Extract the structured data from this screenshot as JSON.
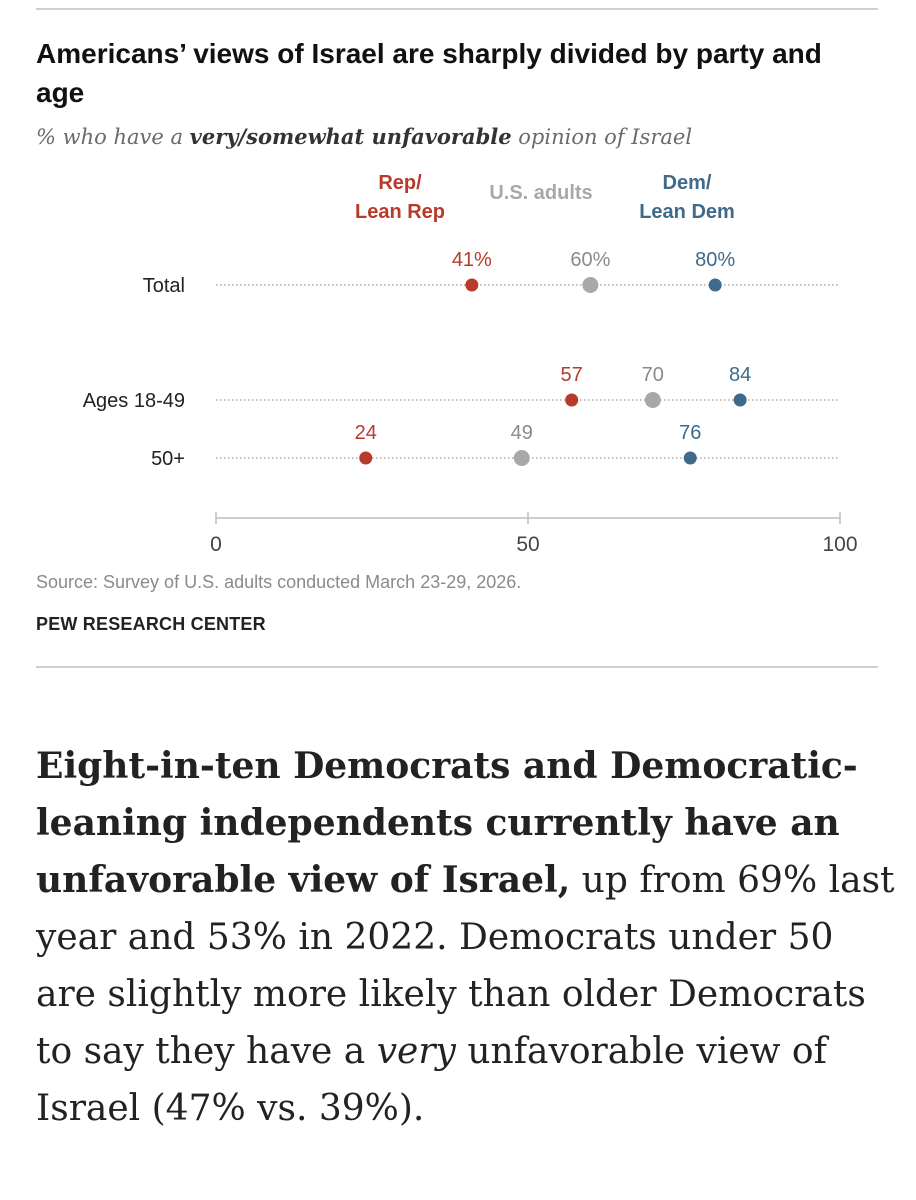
{
  "chart_data": {
    "type": "dot",
    "title": "Americans’ views of Israel are sharply divided by party and age",
    "subtitle": {
      "prefix": "% who have a ",
      "emphasis": "very/somewhat unfavorable",
      "suffix": " opinion of Israel"
    },
    "legend": [
      {
        "key": "rep",
        "line1": "Rep/",
        "line2": "Lean Rep",
        "color": "#b83a2a"
      },
      {
        "key": "us",
        "line1": "U.S. adults",
        "line2": "",
        "color": "#a8a8a8"
      },
      {
        "key": "dem",
        "line1": "Dem/",
        "line2": "Lean Dem",
        "color": "#3f6a8a"
      }
    ],
    "categories": [
      "Total",
      "Ages 18-49",
      "50+"
    ],
    "series": [
      {
        "name": "Rep/Lean Rep",
        "key": "rep",
        "color": "#b83a2a",
        "values": [
          41,
          57,
          24
        ],
        "labels": [
          "41%",
          "57",
          "24"
        ]
      },
      {
        "name": "U.S. adults",
        "key": "us",
        "color": "#a8a8a8",
        "values": [
          60,
          70,
          49
        ],
        "labels": [
          "60%",
          "70",
          "49"
        ]
      },
      {
        "name": "Dem/Lean Dem",
        "key": "dem",
        "color": "#3f6a8a",
        "values": [
          80,
          84,
          76
        ],
        "labels": [
          "80%",
          "84",
          "76"
        ]
      }
    ],
    "xlim": [
      0,
      100
    ],
    "xticks": [
      0,
      50,
      100
    ],
    "grid": false
  },
  "source": "Source: Survey of U.S. adults conducted March 23-29, 2026.",
  "brand": "PEW RESEARCH CENTER",
  "body": {
    "bold": "Eight-in-ten Democrats and Democratic-leaning independents currently have an unfavorable view of Israel,",
    "text1": " up from 69% last year and 53% in 2022. Democrats under 50 are slightly more likely than older Democrats to say they have a ",
    "italic": "very",
    "text2": " unfavorable view of Israel (47% vs. 39%)."
  }
}
